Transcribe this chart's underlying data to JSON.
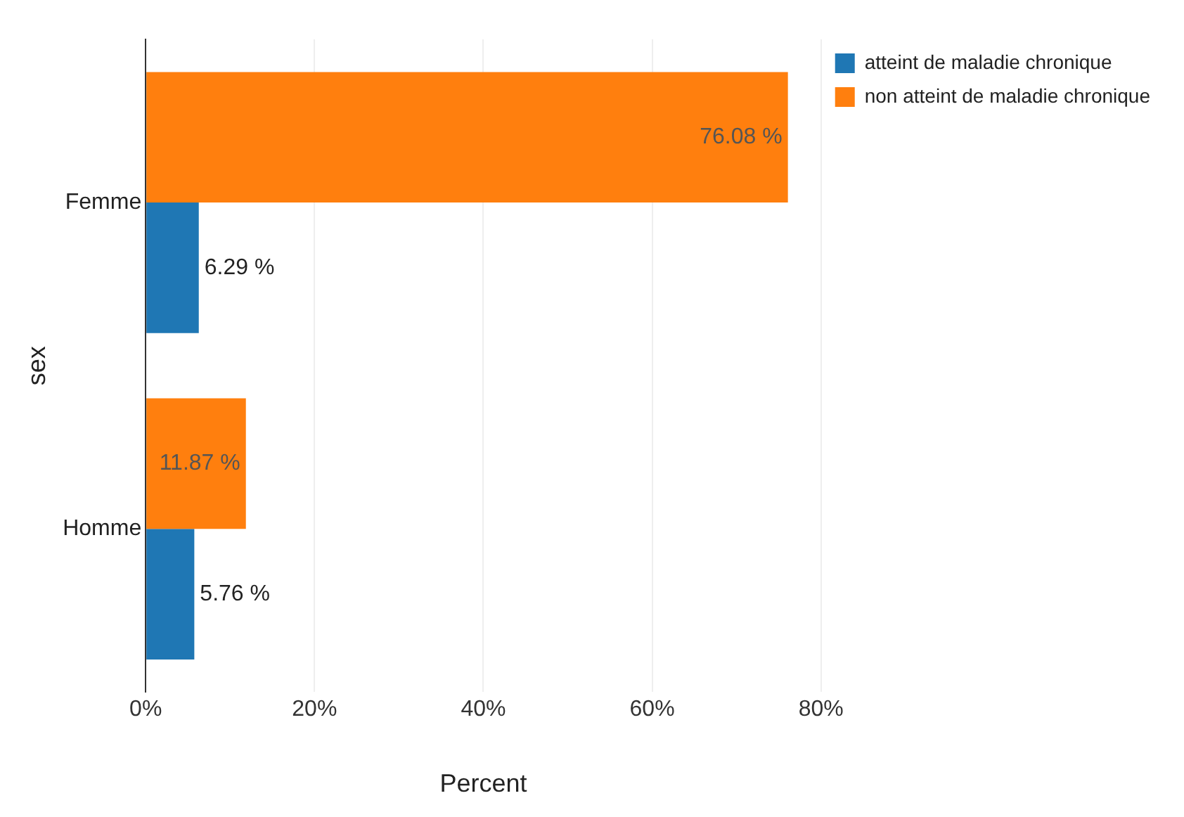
{
  "chart_data": {
    "type": "bar",
    "orientation": "horizontal",
    "categories": [
      "Femme",
      "Homme"
    ],
    "series": [
      {
        "name": "non atteint de maladie chronique",
        "color": "#ff7f0e",
        "values": [
          76.08,
          11.87
        ],
        "value_labels": [
          "76.08 %",
          "11.87 %"
        ]
      },
      {
        "name": "atteint de maladie chronique",
        "color": "#1f77b4",
        "values": [
          6.29,
          5.76
        ],
        "value_labels": [
          "6.29 %",
          "5.76 %"
        ]
      }
    ],
    "xlim": [
      0,
      80
    ],
    "xticks": [
      {
        "value": 0,
        "label": "0%"
      },
      {
        "value": 20,
        "label": "20%"
      },
      {
        "value": 40,
        "label": "40%"
      },
      {
        "value": 60,
        "label": "60%"
      },
      {
        "value": 80,
        "label": "80%"
      }
    ],
    "xlabel": "Percent",
    "ylabel": "sex",
    "grid": "x",
    "legend": "top right"
  }
}
